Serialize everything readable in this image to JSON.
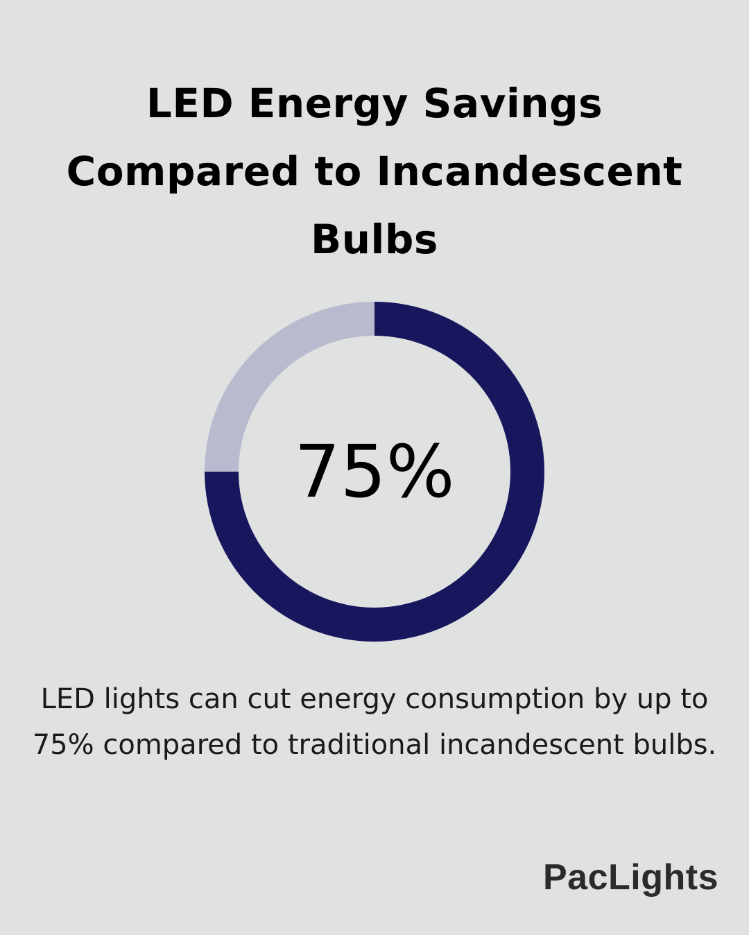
{
  "title": "LED Energy Savings Compared to Incandescent Bulbs",
  "chart_data": {
    "type": "pie",
    "center_label": "75%",
    "slices": [
      {
        "value": 75,
        "color": "#18175e"
      },
      {
        "value": 25,
        "color": "#b9bace"
      }
    ]
  },
  "description": "LED lights can cut energy consumption by up to 75% compared to traditional incandescent bulbs.",
  "brand": {
    "logo_text": "PacLights"
  },
  "colors": {
    "background": "#e0e2e1",
    "accent": "#18175e",
    "remainder": "#b9bace"
  }
}
